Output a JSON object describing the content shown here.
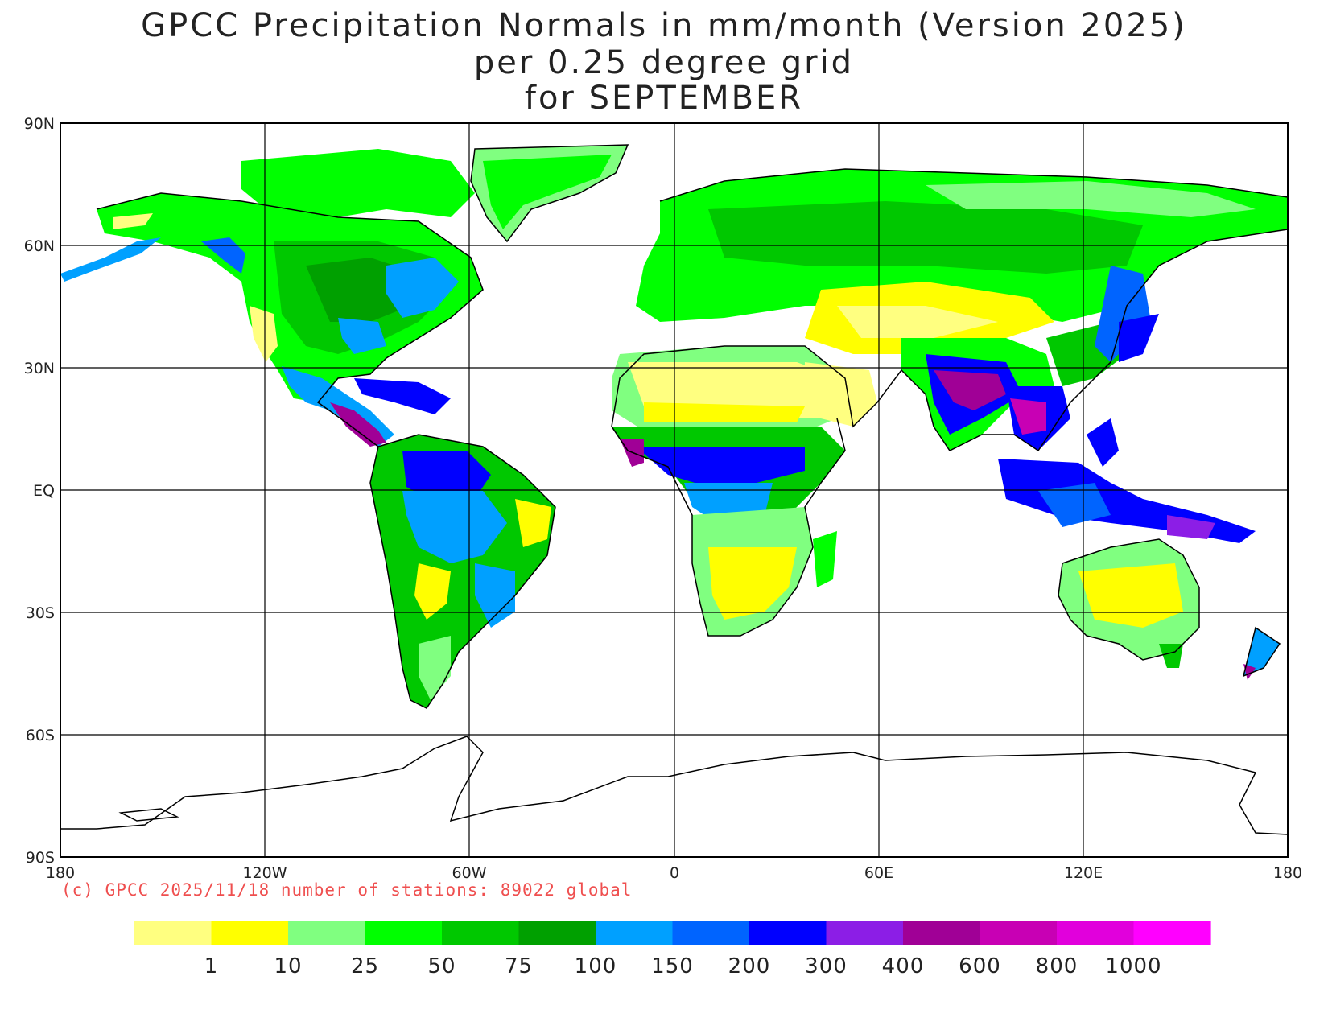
{
  "title": {
    "line1": "GPCC Precipitation Normals in mm/month (Version 2025)",
    "line2": "per 0.25 degree grid",
    "line3": "for SEPTEMBER"
  },
  "axes": {
    "lat_labels": [
      "90N",
      "60N",
      "30N",
      "EQ",
      "30S",
      "60S",
      "90S"
    ],
    "lon_labels": [
      "180",
      "120W",
      "60W",
      "0",
      "60E",
      "120E",
      "180"
    ]
  },
  "credit": "(c) GPCC 2025/11/18 number of stations: 89022 global",
  "legend": {
    "colors": [
      "#ffff80",
      "#ffff00",
      "#80ff80",
      "#00ff00",
      "#00c800",
      "#00a000",
      "#00a0ff",
      "#0064ff",
      "#0000ff",
      "#8c1ee6",
      "#a00096",
      "#c800b4",
      "#e100dc",
      "#ff00ff"
    ],
    "labels": [
      "1",
      "10",
      "25",
      "50",
      "75",
      "100",
      "150",
      "200",
      "300",
      "400",
      "600",
      "800",
      "1000"
    ]
  },
  "colors": {
    "credit": "#ef4f4f",
    "coastline": "#000000",
    "grid": "#000000"
  }
}
